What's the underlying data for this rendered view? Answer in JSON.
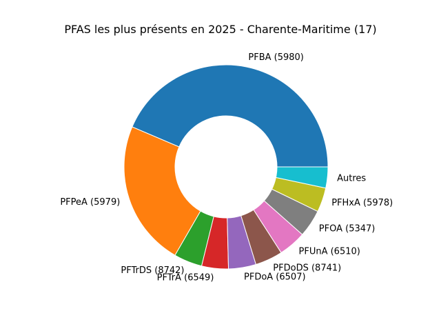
{
  "chart_data": {
    "type": "pie",
    "variant": "donut",
    "title": "PFAS les plus présents en 2025 - Charente-Maritime (17)",
    "start": "east",
    "direction": "counterclockwise",
    "slices": [
      {
        "label": "PFBA (5980)",
        "value": 0.34,
        "color": "#1f77b4"
      },
      {
        "label": "PFPeA (5979)",
        "value": 0.18,
        "color": "#ff7f0e"
      },
      {
        "label": "PFTrDS (8742)",
        "value": 0.035,
        "color": "#2ca02c"
      },
      {
        "label": "PFTrA (6549)",
        "value": 0.033,
        "color": "#d62728"
      },
      {
        "label": "PFDoA (6507)",
        "value": 0.034,
        "color": "#9467bd"
      },
      {
        "label": "PFDoDS (8741)",
        "value": 0.034,
        "color": "#8c564b"
      },
      {
        "label": "PFUnA (6510)",
        "value": 0.034,
        "color": "#e377c2"
      },
      {
        "label": "PFOA (5347)",
        "value": 0.034,
        "color": "#7f7f7f"
      },
      {
        "label": "PFHxA (5978)",
        "value": 0.03,
        "color": "#bcbd22"
      },
      {
        "label": "Autres",
        "value": 0.026,
        "color": "#17becf"
      }
    ]
  }
}
